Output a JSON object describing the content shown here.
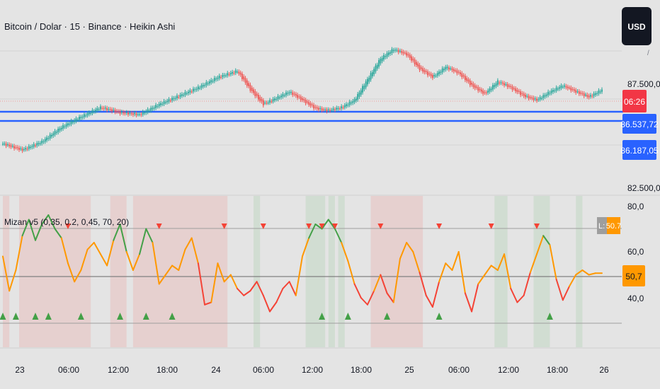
{
  "header": {
    "symbol_title": "Bitcoin / Dolar · 15 · Binance · Heikin Ashi",
    "currency_button": "USD"
  },
  "price_axis": {
    "ticks": [
      "87.500,00",
      "82.500,00"
    ],
    "partial_top_mark": "/"
  },
  "price_tags": {
    "countdown": "06:26",
    "level_1": "86.537,72",
    "level_2": "86.187,05"
  },
  "indicator": {
    "title": "Mizan v5 (0,35, 0.2, 0,45, 70, 20)",
    "ticks": [
      "80,0",
      "60,0",
      "40,0"
    ],
    "value_tag": "50,7",
    "label_tag_prefix": "L:",
    "label_tag_value": "50.7"
  },
  "time_axis": {
    "labels": [
      "23",
      "06:00",
      "12:00",
      "18:00",
      "24",
      "06:00",
      "12:00",
      "18:00",
      "25",
      "06:00",
      "12:00",
      "18:00",
      "26"
    ]
  },
  "colors": {
    "background": "#e4e4e4",
    "candle_up": "#26a69a",
    "candle_down": "#ef5350",
    "support_line": "#2962ff",
    "countdown_tag": "#f23645",
    "level_tag": "#2962ff",
    "osc_up": "#43a047",
    "osc_mid": "#ff9800",
    "osc_down": "#f44336",
    "zone_red": "rgba(244,67,54,0.12)",
    "zone_green": "rgba(76,175,80,0.12)",
    "value_tag": "#ff9800",
    "label_tag": "#9e9e9e"
  },
  "chart_data": [
    {
      "type": "candlestick",
      "title": "Bitcoin / Dolar · 15 · Binance · Heikin Ashi",
      "x_range": [
        "2025-03-22 20:30",
        "2025-03-26 01:00"
      ],
      "x_ticks": [
        "23",
        "06:00",
        "12:00",
        "18:00",
        "24",
        "06:00",
        "12:00",
        "18:00",
        "25",
        "06:00",
        "12:00",
        "18:00",
        "26"
      ],
      "y_ticks": [
        87500,
        82500
      ],
      "horizontal_levels": [
        86537.72,
        86187.05
      ],
      "close_path": [
        [
          0,
          84600
        ],
        [
          3,
          84300
        ],
        [
          6,
          84700
        ],
        [
          9,
          85400
        ],
        [
          12,
          85900
        ],
        [
          15,
          86350
        ],
        [
          18,
          86100
        ],
        [
          21,
          86000
        ],
        [
          24,
          86500
        ],
        [
          27,
          86900
        ],
        [
          30,
          87300
        ],
        [
          33,
          87800
        ],
        [
          36,
          88100
        ],
        [
          38,
          87200
        ],
        [
          40,
          86500
        ],
        [
          42,
          86800
        ],
        [
          44,
          87100
        ],
        [
          46,
          86700
        ],
        [
          48,
          86300
        ],
        [
          50,
          86200
        ],
        [
          52,
          86350
        ],
        [
          54,
          86700
        ],
        [
          56,
          87700
        ],
        [
          58,
          88700
        ],
        [
          60,
          89150
        ],
        [
          62,
          88900
        ],
        [
          64,
          88200
        ],
        [
          66,
          87800
        ],
        [
          68,
          88300
        ],
        [
          70,
          88000
        ],
        [
          72,
          87400
        ],
        [
          74,
          87000
        ],
        [
          76,
          87600
        ],
        [
          78,
          87300
        ],
        [
          80,
          86900
        ],
        [
          82,
          86700
        ],
        [
          84,
          87100
        ],
        [
          86,
          87400
        ],
        [
          88,
          87100
        ],
        [
          90,
          86850
        ],
        [
          92,
          87200
        ]
      ]
    },
    {
      "type": "line",
      "title": "Mizan v5 (0,35, 0.2, 0,45, 70, 20)",
      "y_ticks": [
        80,
        60,
        40
      ],
      "last_value": 50.7,
      "x": [
        0,
        1,
        2,
        3,
        4,
        5,
        6,
        7,
        8,
        9,
        10,
        11,
        12,
        13,
        14,
        15,
        16,
        17,
        18,
        19,
        20,
        21,
        22,
        23,
        24,
        25,
        26,
        27,
        28,
        29,
        30,
        31,
        32,
        33,
        34,
        35,
        36,
        37,
        38,
        39,
        40,
        41,
        42,
        43,
        44,
        45,
        46,
        47,
        48,
        49,
        50,
        51,
        52,
        53,
        54,
        55,
        56,
        57,
        58,
        59,
        60,
        61,
        62,
        63,
        64,
        65,
        66,
        67,
        68,
        69,
        70,
        71,
        72,
        73,
        74,
        75,
        76,
        77,
        78,
        79,
        80,
        81,
        82,
        83,
        84,
        85,
        86,
        87,
        88,
        89,
        90,
        91,
        92
      ],
      "values": [
        58,
        43,
        52,
        67,
        74,
        65,
        72,
        76,
        70,
        66,
        55,
        47,
        52,
        61,
        64,
        59,
        54,
        65,
        72,
        60,
        52,
        59,
        70,
        64,
        46,
        50,
        54,
        52,
        61,
        66,
        55,
        37,
        38,
        55,
        47,
        50,
        44,
        41,
        43,
        47,
        41,
        34,
        38,
        44,
        47,
        41,
        58,
        66,
        72,
        70,
        74,
        70,
        64,
        56,
        46,
        40,
        37,
        43,
        50,
        42,
        38,
        57,
        64,
        60,
        51,
        41,
        36,
        47,
        55,
        52,
        60,
        42,
        34,
        46,
        50,
        54,
        52,
        59,
        44,
        38,
        41,
        51,
        59,
        67,
        63,
        48,
        39,
        45,
        50,
        52,
        50,
        50.7,
        50.7
      ],
      "down_markers_x": [
        10,
        24,
        34,
        40,
        47,
        49,
        51,
        58,
        67,
        75,
        82
      ],
      "up_markers_x": [
        0,
        2,
        5,
        7,
        12,
        18,
        22,
        26,
        49,
        53,
        59,
        67,
        84
      ]
    }
  ]
}
